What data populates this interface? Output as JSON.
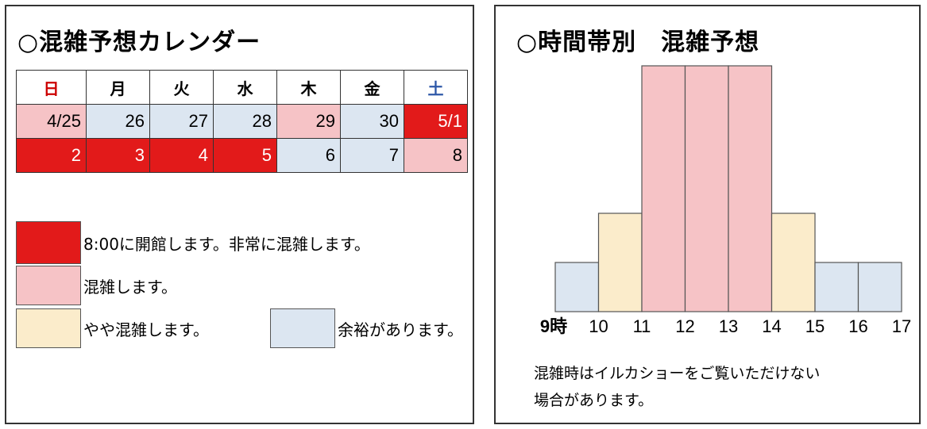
{
  "colors": {
    "very_crowded": "#e21a1a",
    "crowded": "#f6c3c6",
    "somewhat_crowded": "#fbeccb",
    "available": "#dce6f1",
    "sunday_text": "#cc0000",
    "saturday_text": "#2e58a8"
  },
  "calendar_panel": {
    "title": "○混雑予想カレンダー",
    "weekdays": [
      "日",
      "月",
      "火",
      "水",
      "木",
      "金",
      "土"
    ],
    "weeks": [
      [
        {
          "label": "4/25",
          "level": "crowded"
        },
        {
          "label": "26",
          "level": "available"
        },
        {
          "label": "27",
          "level": "available"
        },
        {
          "label": "28",
          "level": "available"
        },
        {
          "label": "29",
          "level": "crowded"
        },
        {
          "label": "30",
          "level": "available"
        },
        {
          "label": "5/1",
          "level": "very_crowded"
        }
      ],
      [
        {
          "label": "2",
          "level": "very_crowded"
        },
        {
          "label": "3",
          "level": "very_crowded"
        },
        {
          "label": "4",
          "level": "very_crowded"
        },
        {
          "label": "5",
          "level": "very_crowded"
        },
        {
          "label": "6",
          "level": "available"
        },
        {
          "label": "7",
          "level": "available"
        },
        {
          "label": "8",
          "level": "crowded"
        }
      ]
    ],
    "legend": {
      "very_crowded": "8:00に開館します。非常に混雑します。",
      "crowded": "混雑します。",
      "somewhat_crowded": "やや混雑します。",
      "available": "余裕があります。"
    }
  },
  "chart_panel": {
    "title": "○時間帯別　混雑予想",
    "note_line1": "混雑時はイルカショーをご覧いただけない",
    "note_line2": "場合があります。"
  },
  "chart_data": {
    "type": "bar",
    "title": "○時間帯別　混雑予想",
    "x_tick_labels": [
      "9時",
      "10",
      "11",
      "12",
      "13",
      "14",
      "15",
      "16",
      "17"
    ],
    "categories": [
      "9-10",
      "10-11",
      "11-12",
      "12-13",
      "13-14",
      "14-15",
      "15-16",
      "16-17"
    ],
    "values": [
      1,
      2,
      5,
      5,
      5,
      2,
      1,
      1
    ],
    "levels": [
      "available",
      "somewhat_crowded",
      "crowded",
      "crowded",
      "crowded",
      "somewhat_crowded",
      "available",
      "available"
    ],
    "ylim": [
      0,
      5
    ],
    "grid": false,
    "legend": "none"
  }
}
